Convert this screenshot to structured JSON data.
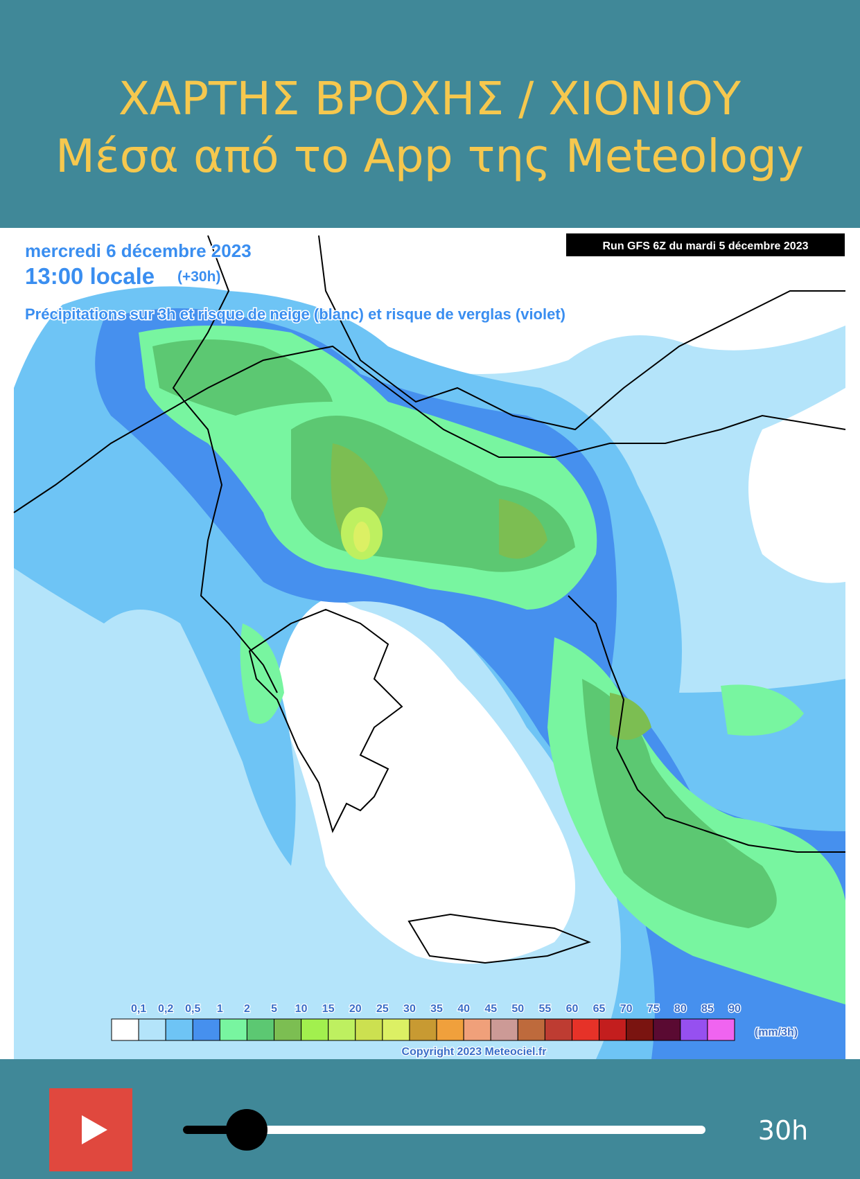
{
  "header": {
    "title_line1": "ΧΑΡΤΗΣ ΒΡΟΧΗΣ / ΧΙΟΝΙΟΥ",
    "title_line2": "Μέσα από το App της Meteology"
  },
  "map": {
    "date": "mercredi 6 décembre 2023",
    "time": "13:00 locale",
    "lead": "(+30h)",
    "description": "Précipitations sur 3h et risque de neige (blanc) et risque de verglas (violet)",
    "run": "Run GFS 6Z du mardi 5 décembre 2023",
    "legend": {
      "labels": [
        "0,1",
        "0,2",
        "0,5",
        "1",
        "2",
        "5",
        "10",
        "15",
        "20",
        "25",
        "30",
        "35",
        "40",
        "45",
        "50",
        "55",
        "60",
        "65",
        "70",
        "75",
        "80",
        "85",
        "90"
      ],
      "colors": [
        "#ffffff",
        "#b4e4fa",
        "#6ec4f5",
        "#4690ee",
        "#78f5a0",
        "#5cc872",
        "#7cbe52",
        "#a2f04e",
        "#bef060",
        "#cce050",
        "#dcf064",
        "#c89a32",
        "#f0a03c",
        "#f0a07a",
        "#cc9a96",
        "#be6a3c",
        "#be3c32",
        "#e63228",
        "#c31e1e",
        "#7a1410",
        "#5a0a32",
        "#9650f0",
        "#f064f0"
      ],
      "unit": "(mm/3h)"
    },
    "copyright": "Copyright 2023 Meteociel.fr"
  },
  "player": {
    "time_label": "30h"
  }
}
